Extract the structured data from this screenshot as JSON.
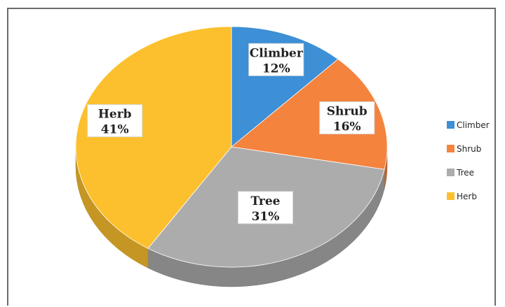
{
  "chart_data": {
    "type": "pie",
    "style": "3d",
    "title": "",
    "categories": [
      "Climber",
      "Shrub",
      "Tree",
      "Herb"
    ],
    "values": [
      12,
      16,
      31,
      41
    ],
    "value_labels": [
      "12%",
      "16%",
      "31%",
      "41%"
    ],
    "colors": [
      "#3d8fd6",
      "#f4833d",
      "#acacac",
      "#fcc02e"
    ],
    "legend_position": "right",
    "legend": [
      "Climber",
      "Shrub",
      "Tree",
      "Herb"
    ]
  }
}
